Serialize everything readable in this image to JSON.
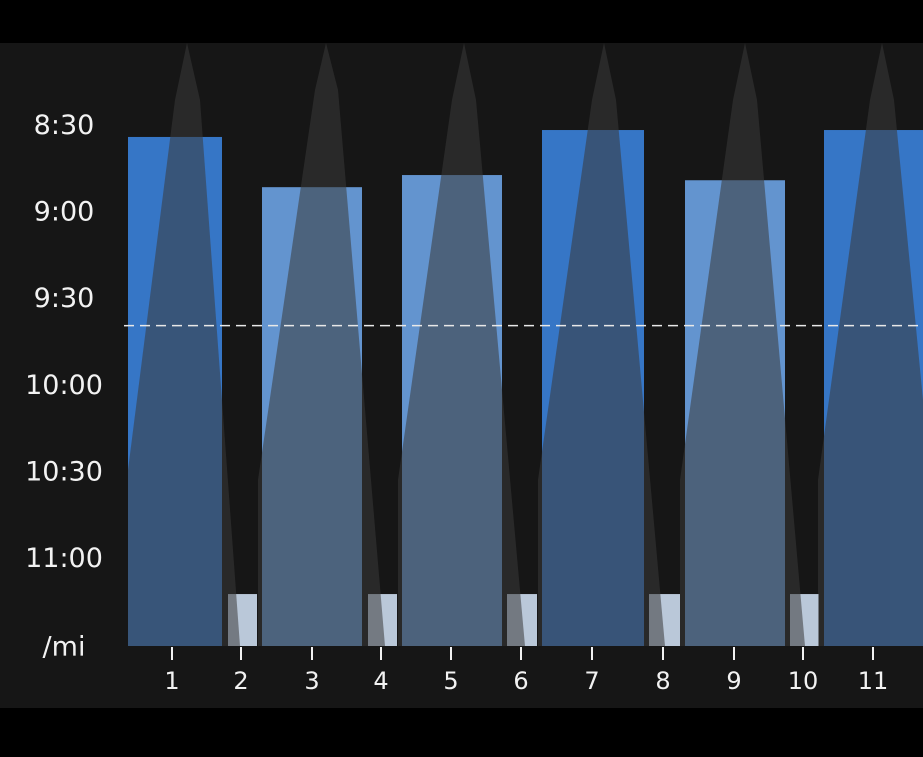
{
  "chart_data": {
    "type": "bar",
    "ylabel": "/mi",
    "categories": [
      "1",
      "2",
      "3",
      "4",
      "5",
      "6",
      "7",
      "8",
      "9",
      "10",
      "11"
    ],
    "values": [
      8.56,
      11.2,
      8.85,
      11.2,
      8.78,
      11.2,
      8.52,
      11.2,
      8.81,
      11.2,
      8.52
    ],
    "colors": [
      "#3a7fd6",
      "#c9d8ea",
      "#6aa0e0",
      "#c9d8ea",
      "#6aa0e0",
      "#c9d8ea",
      "#3a7fd6",
      "#c9d8ea",
      "#6aa0e0",
      "#c9d8ea",
      "#3a7fd6"
    ],
    "ylim": [
      11.5,
      8
    ],
    "yticks": [
      {
        "value": 8.5,
        "label": "8:30"
      },
      {
        "value": 9,
        "label": "9:00"
      },
      {
        "value": 9.5,
        "label": "9:30"
      },
      {
        "value": 10,
        "label": "10:00"
      },
      {
        "value": 10.5,
        "label": "10:30"
      },
      {
        "value": 11,
        "label": "11:00"
      }
    ],
    "reference_line": 9.65
  }
}
